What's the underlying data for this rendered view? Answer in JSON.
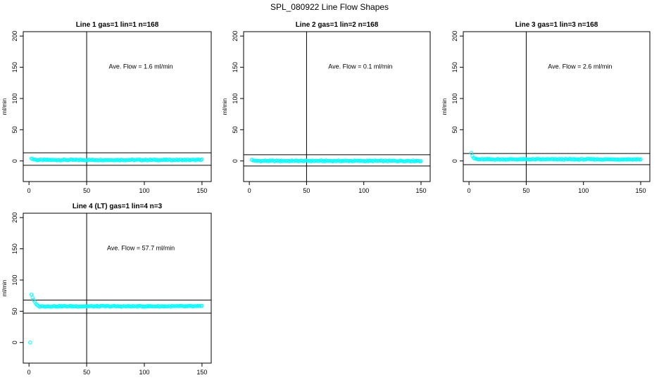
{
  "figure": {
    "title": "SPL_080922  Line Flow Shapes"
  },
  "chart_data": [
    {
      "type": "scatter",
      "title": "Line 1 gas=1 lin=1 n=168",
      "xlabel": "",
      "ylabel": "ml/min",
      "xlim": [
        -5,
        158
      ],
      "ylim": [
        -33,
        207
      ],
      "xticks": [
        0,
        50,
        100,
        150
      ],
      "yticks": [
        0,
        50,
        100,
        150,
        200
      ],
      "vline": 50,
      "hlines": [
        13,
        -7
      ],
      "annotation": "Ave. Flow =  1.6  ml/min",
      "marker_color": "#00ffff",
      "series": [
        {
          "points_from": 2,
          "points_to": 150,
          "start_values": [
            4,
            3,
            2.5,
            2.2,
            2
          ],
          "level": 1.6
        }
      ]
    },
    {
      "type": "scatter",
      "title": "Line 2 gas=1 lin=2 n=168",
      "xlabel": "",
      "ylabel": "ml/min",
      "xlim": [
        -5,
        158
      ],
      "ylim": [
        -33,
        207
      ],
      "xticks": [
        0,
        50,
        100,
        150
      ],
      "yticks": [
        0,
        50,
        100,
        150,
        200
      ],
      "vline": 50,
      "hlines": [
        10,
        -8
      ],
      "annotation": "Ave. Flow =  0.1  ml/min",
      "marker_color": "#00ffff",
      "series": [
        {
          "points_from": 2,
          "points_to": 150,
          "start_values": [
            2,
            1,
            0.5
          ],
          "level": 0.1
        }
      ]
    },
    {
      "type": "scatter",
      "title": "Line 3 gas=1 lin=3 n=168",
      "xlabel": "",
      "ylabel": "ml/min",
      "xlim": [
        -5,
        158
      ],
      "ylim": [
        -33,
        207
      ],
      "xticks": [
        0,
        50,
        100,
        150
      ],
      "yticks": [
        0,
        50,
        100,
        150,
        200
      ],
      "vline": 50,
      "hlines": [
        12,
        -6
      ],
      "annotation": "Ave. Flow =  2.6  ml/min",
      "marker_color": "#00ffff",
      "series": [
        {
          "points_from": 2,
          "points_to": 150,
          "start_values": [
            13,
            8,
            5,
            4,
            3.5,
            3
          ],
          "level": 2.6
        }
      ]
    },
    {
      "type": "scatter",
      "title": "Line 4 (LT) gas=1 lin=4 n=3",
      "xlabel": "",
      "ylabel": "ml/min",
      "xlim": [
        -5,
        158
      ],
      "ylim": [
        -33,
        207
      ],
      "xticks": [
        0,
        50,
        100,
        150
      ],
      "yticks": [
        0,
        50,
        100,
        150,
        200
      ],
      "vline": 50,
      "hlines": [
        68,
        47
      ],
      "annotation": "Ave. Flow =  57.7  ml/min",
      "marker_color": "#00ffff",
      "series": [
        {
          "points_from": 2,
          "points_to": 150,
          "first_point": [
            1,
            0
          ],
          "start_values": [
            77,
            72,
            68,
            65,
            62,
            60,
            59
          ],
          "level": 58
        }
      ]
    }
  ]
}
